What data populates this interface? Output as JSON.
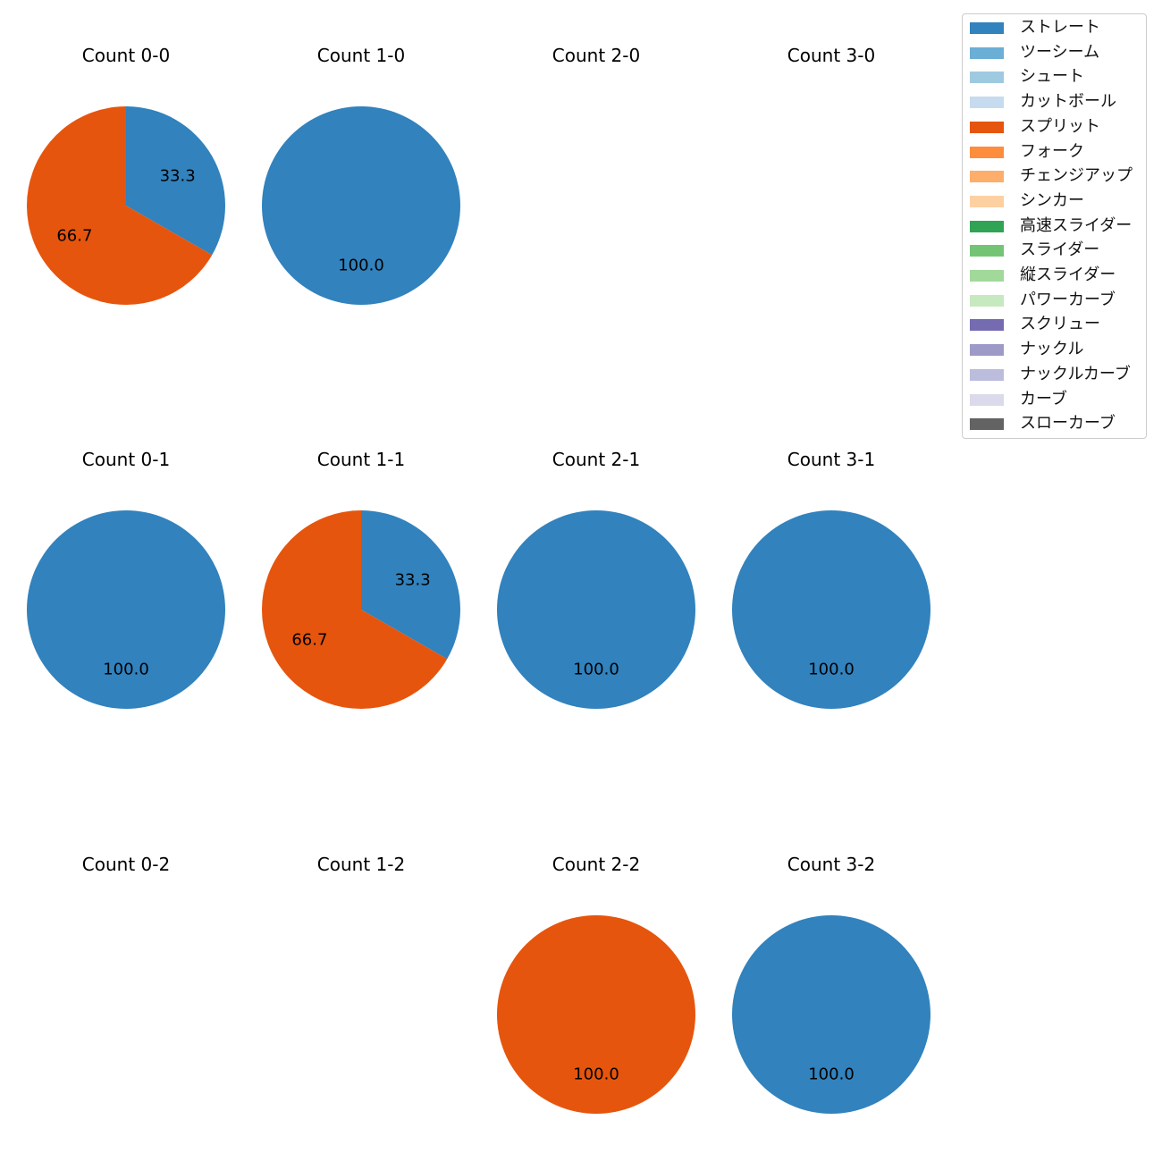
{
  "chart_data": {
    "type": "pie",
    "legend": {
      "placement": "top-right",
      "entries": [
        {
          "name": "ストレート",
          "color": "#3182bd"
        },
        {
          "name": "ツーシーム",
          "color": "#6baed6"
        },
        {
          "name": "シュート",
          "color": "#9ecae1"
        },
        {
          "name": "カットボール",
          "color": "#c6dbef"
        },
        {
          "name": "スプリット",
          "color": "#e6550d"
        },
        {
          "name": "フォーク",
          "color": "#fd8d3c"
        },
        {
          "name": "チェンジアップ",
          "color": "#fdae6b"
        },
        {
          "name": "シンカー",
          "color": "#fdd0a2"
        },
        {
          "name": "高速スライダー",
          "color": "#31a354"
        },
        {
          "name": "スライダー",
          "color": "#74c476"
        },
        {
          "name": "縦スライダー",
          "color": "#a1d99b"
        },
        {
          "name": "パワーカーブ",
          "color": "#c7e9c0"
        },
        {
          "name": "スクリュー",
          "color": "#756bb1"
        },
        {
          "name": "ナックル",
          "color": "#9e9ac8"
        },
        {
          "name": "ナックルカーブ",
          "color": "#bcbddc"
        },
        {
          "name": "カーブ",
          "color": "#dadaeb"
        },
        {
          "name": "スローカーブ",
          "color": "#636363"
        }
      ]
    },
    "panels": [
      {
        "title": "Count 0-0",
        "slices": [
          {
            "pitch": "ストレート",
            "value": 33.3,
            "label": "33.3"
          },
          {
            "pitch": "スプリット",
            "value": 66.7,
            "label": "66.7"
          }
        ]
      },
      {
        "title": "Count 1-0",
        "slices": [
          {
            "pitch": "ストレート",
            "value": 100.0,
            "label": "100.0"
          }
        ]
      },
      {
        "title": "Count 2-0",
        "slices": []
      },
      {
        "title": "Count 3-0",
        "slices": []
      },
      {
        "title": "Count 0-1",
        "slices": [
          {
            "pitch": "ストレート",
            "value": 100.0,
            "label": "100.0"
          }
        ]
      },
      {
        "title": "Count 1-1",
        "slices": [
          {
            "pitch": "ストレート",
            "value": 33.3,
            "label": "33.3"
          },
          {
            "pitch": "スプリット",
            "value": 66.7,
            "label": "66.7"
          }
        ]
      },
      {
        "title": "Count 2-1",
        "slices": [
          {
            "pitch": "ストレート",
            "value": 100.0,
            "label": "100.0"
          }
        ]
      },
      {
        "title": "Count 3-1",
        "slices": [
          {
            "pitch": "ストレート",
            "value": 100.0,
            "label": "100.0"
          }
        ]
      },
      {
        "title": "Count 0-2",
        "slices": []
      },
      {
        "title": "Count 1-2",
        "slices": []
      },
      {
        "title": "Count 2-2",
        "slices": [
          {
            "pitch": "スプリット",
            "value": 100.0,
            "label": "100.0"
          }
        ]
      },
      {
        "title": "Count 3-2",
        "slices": [
          {
            "pitch": "ストレート",
            "value": 100.0,
            "label": "100.0"
          }
        ]
      }
    ]
  }
}
